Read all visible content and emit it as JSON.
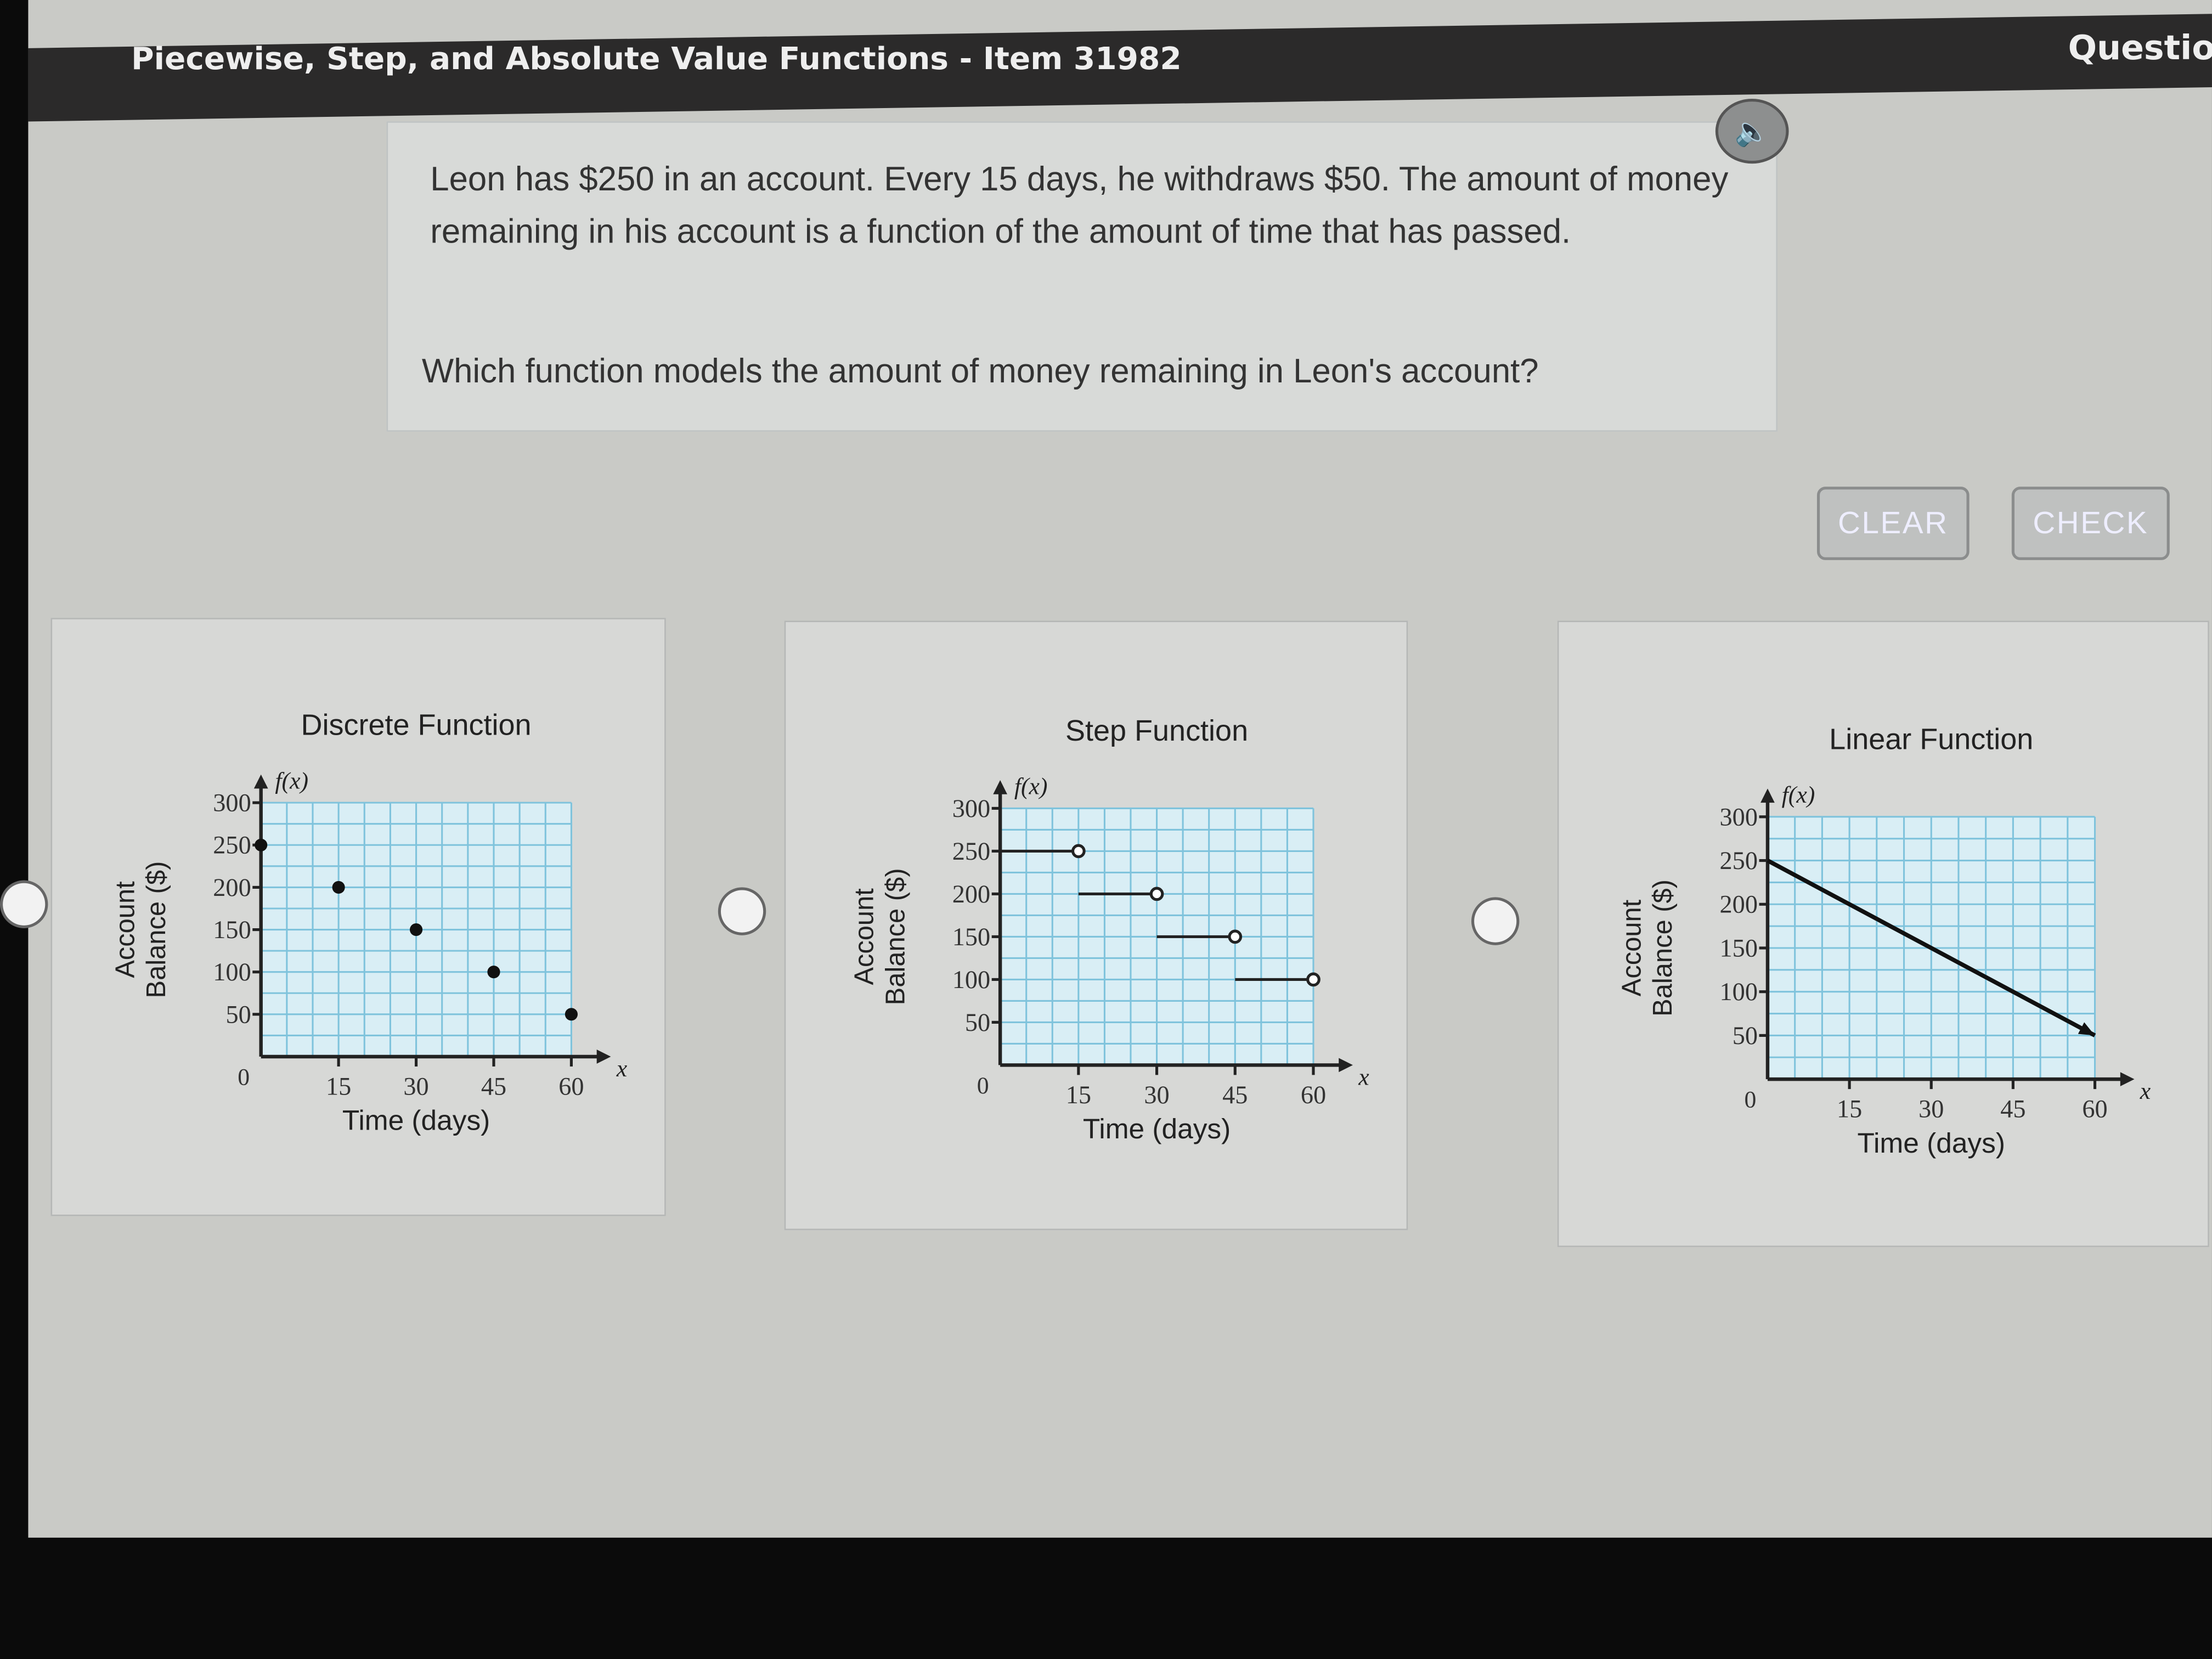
{
  "header": {
    "title": "Piecewise, Step, and Absolute Value Functions - Item 31982",
    "question_label": "Questio"
  },
  "prompt": {
    "text": "Leon has $250 in an account. Every 15 days, he withdraws $50. The amount of money remaining in his account is a function of the amount of time that has passed.",
    "question": "Which function models the amount of money remaining in Leon's account?",
    "speaker_icon": "speaker-icon"
  },
  "buttons": {
    "clear": "CLEAR",
    "check": "CHECK"
  },
  "colors": {
    "grid": "#7fc3dc",
    "header_bg": "#2b2a2a"
  },
  "chart_data": [
    {
      "type": "scatter",
      "title": "Discrete Function",
      "xlabel": "Time (days)",
      "ylabel": "Account Balance ($)",
      "fx_label": "f(x)",
      "x_axis_label": "x",
      "origin_label": "0",
      "xticks": [
        15,
        30,
        45,
        60
      ],
      "yticks": [
        50,
        100,
        150,
        200,
        250,
        300
      ],
      "xlim": [
        0,
        60
      ],
      "ylim": [
        0,
        300
      ],
      "grid": true,
      "points": [
        [
          0,
          250
        ],
        [
          15,
          200
        ],
        [
          30,
          150
        ],
        [
          45,
          100
        ],
        [
          60,
          50
        ]
      ]
    },
    {
      "type": "line",
      "subtype": "step",
      "title": "Step Function",
      "xlabel": "Time (days)",
      "ylabel": "Account Balance ($)",
      "fx_label": "f(x)",
      "x_axis_label": "x",
      "origin_label": "0",
      "xticks": [
        15,
        30,
        45,
        60
      ],
      "yticks": [
        50,
        100,
        150,
        200,
        250,
        300
      ],
      "xlim": [
        0,
        60
      ],
      "ylim": [
        0,
        300
      ],
      "grid": true,
      "segments": [
        {
          "x": [
            0,
            15
          ],
          "y": 250,
          "right": "open"
        },
        {
          "x": [
            15,
            30
          ],
          "y": 200,
          "right": "open"
        },
        {
          "x": [
            30,
            45
          ],
          "y": 150,
          "right": "open"
        },
        {
          "x": [
            45,
            60
          ],
          "y": 100,
          "right": "open"
        }
      ]
    },
    {
      "type": "line",
      "title": "Linear Function",
      "xlabel": "Time (days)",
      "ylabel": "Account Balance ($)",
      "fx_label": "f(x)",
      "x_axis_label": "x",
      "origin_label": "0",
      "xticks": [
        15,
        30,
        45,
        60
      ],
      "yticks": [
        50,
        100,
        150,
        200,
        250,
        300
      ],
      "xlim": [
        0,
        60
      ],
      "ylim": [
        0,
        300
      ],
      "grid": true,
      "line": {
        "x": [
          0,
          60
        ],
        "y": [
          250,
          50
        ],
        "arrow": true
      }
    }
  ]
}
